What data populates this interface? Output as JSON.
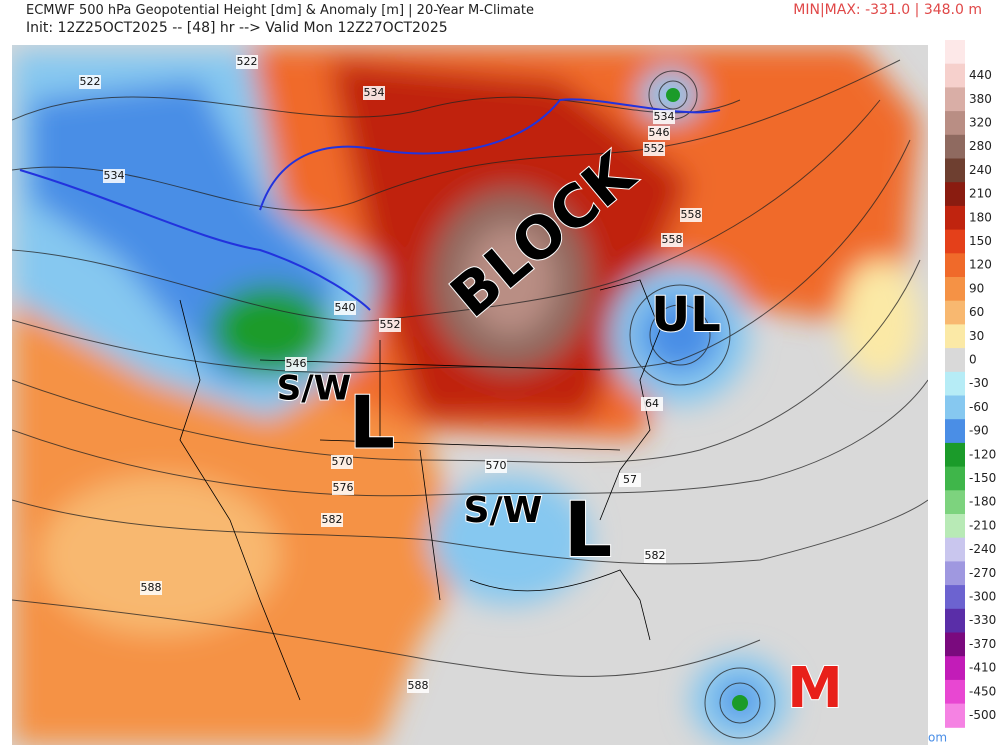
{
  "header": {
    "title": "ECMWF 500 hPa Geopotential Height [dm] & Anomaly [m] | 20-Year M-Climate",
    "init_line": "Init: 12Z25OCT2025 -- [48] hr --> Valid Mon 12Z27OCT2025",
    "minmax": "MIN|MAX: -331.0 | 348.0 m"
  },
  "colorbar": {
    "colors": [
      "#fde8e8",
      "#f6d0cc",
      "#d9aea6",
      "#b98e84",
      "#8f6a60",
      "#6e3f30",
      "#8a1c10",
      "#c0240f",
      "#e4401a",
      "#f06a2a",
      "#f59245",
      "#f8b870",
      "#fbe9a6",
      "#d9d9d9",
      "#b6ecf6",
      "#86c8f0",
      "#4a8ee6",
      "#1b9b2a",
      "#3fb64a",
      "#7dd37e",
      "#b8eab6",
      "#c9c6ee",
      "#9f98e0",
      "#6c63d0",
      "#5a2ea8",
      "#7a0a7e",
      "#c21cb8",
      "#e847d2",
      "#f582e3"
    ],
    "labels": [
      "440",
      "380",
      "320",
      "280",
      "240",
      "210",
      "180",
      "150",
      "120",
      "90",
      "60",
      "30",
      "0",
      "-30",
      "-60",
      "-90",
      "-120",
      "-150",
      "-180",
      "-210",
      "-240",
      "-270",
      "-300",
      "-330",
      "-370",
      "-410",
      "-450",
      "-500"
    ]
  },
  "map": {
    "contour_labels": [
      "522",
      "522",
      "534",
      "534",
      "534",
      "546",
      "552",
      "558",
      "558",
      "540",
      "552",
      "546",
      "570",
      "576",
      "570",
      "582",
      "57",
      "582",
      "588",
      "588",
      "64"
    ],
    "annotations": {
      "block": "BLOCK",
      "ul": "UL",
      "sw_west": "S/W",
      "l_west": "L",
      "sw_south": "S/W",
      "l_south": "L",
      "m": "M"
    },
    "watermark": "om"
  }
}
